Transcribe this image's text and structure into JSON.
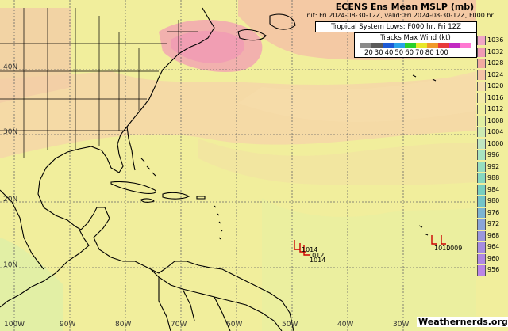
{
  "header": {
    "title": "ECENS Ens Mean MSLP (mb)",
    "subtitle": "init: Fri 2024-08-30-12Z, valid: Fri 2024-08-30-12Z, F000 hr",
    "tropical_label": "Tropical System Lows: F000 hr, Fri 12Z"
  },
  "tracks_legend": {
    "title": "Tracks Max Wind (kt)",
    "labels": [
      "20",
      "30",
      "40",
      "50",
      "60",
      "70",
      "80",
      "100"
    ],
    "colors": [
      "#8a8a8a",
      "#5a5a5a",
      "#1d5ad6",
      "#2aa3e8",
      "#2ad02a",
      "#e8e82a",
      "#f09a2a",
      "#e83a3a",
      "#c22ac2",
      "#ff78d2"
    ]
  },
  "colorbar": {
    "levels": [
      "1036",
      "1032",
      "1028",
      "1024",
      "1020",
      "1016",
      "1012",
      "1008",
      "1004",
      "1000",
      "996",
      "992",
      "988",
      "984",
      "980",
      "976",
      "972",
      "968",
      "964",
      "960",
      "956"
    ],
    "colors": [
      "#f0a6c6",
      "#f09ab4",
      "#f2aaa0",
      "#f4c3a6",
      "#f6deae",
      "#f4ecaa",
      "#edf0a0",
      "#e0efa2",
      "#ccebb2",
      "#bfe6c2",
      "#a8e4c2",
      "#96dec0",
      "#86d8bf",
      "#78cfc0",
      "#74c4c8",
      "#7cb4d2",
      "#8aa4d8",
      "#9a96dc",
      "#a68ce0",
      "#b088e2",
      "#bb86e6"
    ]
  },
  "grid": {
    "lat_labels": [
      "40N",
      "30N",
      "20N",
      "10N"
    ],
    "lon_labels": [
      "100W",
      "90W",
      "80W",
      "70W",
      "60W",
      "50W",
      "40W",
      "30W"
    ]
  },
  "lows": [
    {
      "label": "1014"
    },
    {
      "label": "1012"
    },
    {
      "label": "1014"
    },
    {
      "label": "1010"
    },
    {
      "label": "1009"
    }
  ],
  "watermark": "Weathernerds.org"
}
